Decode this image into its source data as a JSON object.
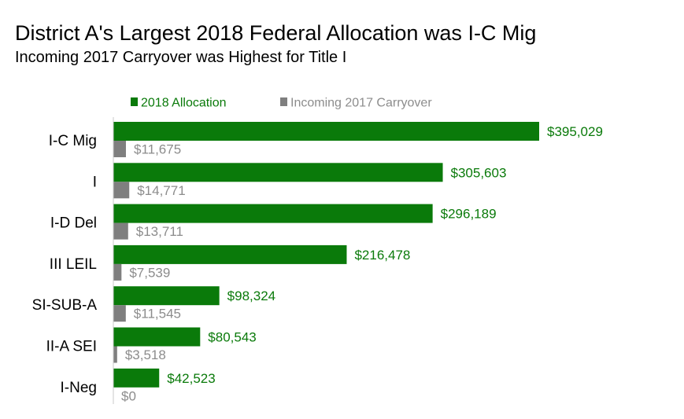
{
  "title": "District A's Largest 2018 Federal Allocation was I-C Mig",
  "subtitle": "Incoming 2017 Carryover was Highest for Title I",
  "colors": {
    "allocation": "#0a7a0a",
    "carryover": "#7f7f7f",
    "axis": "#c8c8c8"
  },
  "chart_data": {
    "type": "bar",
    "orientation": "horizontal",
    "categories": [
      "I-C Mig",
      "I",
      "I-D Del",
      "III LEIL",
      "SI-SUB-A",
      "II-A SEI",
      "I-Neg"
    ],
    "series": [
      {
        "name": "2018 Allocation",
        "values": [
          395029,
          305603,
          296189,
          216478,
          98324,
          80543,
          42523
        ],
        "labels": [
          "$395,029",
          "$305,603",
          "$296,189",
          "$216,478",
          "$98,324",
          "$80,543",
          "$42,523"
        ]
      },
      {
        "name": "Incoming 2017 Carryover",
        "values": [
          11675,
          14771,
          13711,
          7539,
          11545,
          3518,
          0
        ],
        "labels": [
          "$11,675",
          "$14,771",
          "$13,711",
          "$7,539",
          "$11,545",
          "$3,518",
          "$0"
        ]
      }
    ],
    "xlim": [
      0,
      395029
    ],
    "legend": "top",
    "grid": false
  }
}
